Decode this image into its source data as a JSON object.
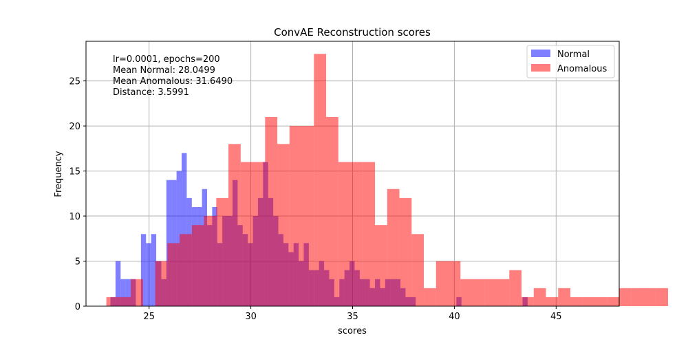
{
  "chart_data": {
    "type": "histogram",
    "title": "ConvAE Reconstruction scores",
    "xlabel": "scores",
    "ylabel": "Frequency",
    "xlim": [
      21.9,
      48.1
    ],
    "ylim": [
      0,
      29.4
    ],
    "xticks": [
      25,
      30,
      35,
      40,
      45
    ],
    "yticks": [
      0,
      5,
      10,
      15,
      20,
      25
    ],
    "grid": true,
    "legend_position": "top-right",
    "annotation": [
      "lr=0.0001, epochs=200",
      "Mean Normal: 28.0499",
      "Mean Anomalous: 31.6490",
      "Distance: 3.5991"
    ],
    "series": [
      {
        "name": "Normal",
        "color": "#0000ff",
        "alpha": 0.5,
        "bin_start": 23.1,
        "bin_width": 0.25,
        "counts": [
          1,
          5,
          3,
          3,
          3,
          0,
          8,
          7,
          8,
          5,
          3,
          14,
          14,
          15,
          17,
          12,
          11,
          11,
          13,
          9,
          11,
          7,
          10,
          10,
          14,
          9,
          8,
          7,
          10,
          12,
          16,
          12,
          10,
          8,
          7,
          6,
          7,
          5,
          7,
          4,
          4,
          5,
          4,
          3,
          1,
          3,
          4,
          5,
          4,
          3,
          3,
          2,
          3,
          2,
          3,
          3,
          3,
          2,
          1,
          1,
          0,
          0,
          0,
          0,
          0,
          0,
          0,
          0,
          1,
          0,
          0,
          0,
          0,
          0,
          0,
          0,
          0,
          0,
          0,
          0,
          0,
          1
        ]
      },
      {
        "name": "Anomalous",
        "color": "#ff0000",
        "alpha": 0.5,
        "bin_start": 22.9,
        "bin_width": 0.6,
        "counts": [
          1,
          1,
          3,
          0,
          5,
          7,
          8,
          9,
          10,
          12,
          18,
          16,
          16,
          21,
          18,
          20,
          20,
          28,
          21,
          16,
          16,
          16,
          9,
          13,
          12,
          8,
          2,
          5,
          5,
          3,
          3,
          3,
          3,
          4,
          1,
          2,
          1,
          2,
          1,
          1,
          1,
          1,
          2,
          2,
          2,
          2,
          0,
          0,
          0,
          0,
          1,
          0,
          1
        ]
      }
    ]
  }
}
